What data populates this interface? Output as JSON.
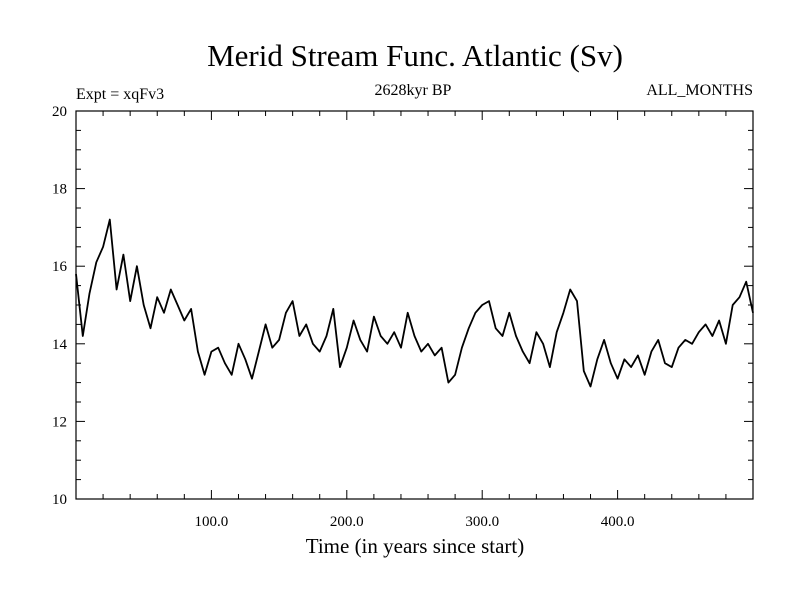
{
  "chart_data": {
    "type": "line",
    "title": "Merid Stream Func. Atlantic (Sv)",
    "subtitle_left": "Expt = xqFv3",
    "subtitle_center": "2628kyr BP",
    "subtitle_right": "ALL_MONTHS",
    "xlabel": "Time (in years since start)",
    "ylabel": "",
    "xlim": [
      0,
      500
    ],
    "ylim": [
      10,
      20
    ],
    "x_ticks": [
      100,
      200,
      300,
      400
    ],
    "x_tick_labels": [
      "100.0",
      "200.0",
      "300.0",
      "400.0"
    ],
    "y_ticks": [
      10,
      12,
      14,
      16,
      18,
      20
    ],
    "y_tick_labels": [
      "10",
      "12",
      "14",
      "16",
      "18",
      "20"
    ],
    "grid": false,
    "series": [
      {
        "name": "Merid Stream Func. Atlantic",
        "color": "#000000",
        "x": [
          0,
          5,
          10,
          15,
          20,
          25,
          30,
          35,
          40,
          45,
          50,
          55,
          60,
          65,
          70,
          75,
          80,
          85,
          90,
          95,
          100,
          105,
          110,
          115,
          120,
          125,
          130,
          135,
          140,
          145,
          150,
          155,
          160,
          165,
          170,
          175,
          180,
          185,
          190,
          195,
          200,
          205,
          210,
          215,
          220,
          225,
          230,
          235,
          240,
          245,
          250,
          255,
          260,
          265,
          270,
          275,
          280,
          285,
          290,
          295,
          300,
          305,
          310,
          315,
          320,
          325,
          330,
          335,
          340,
          345,
          350,
          355,
          360,
          365,
          370,
          375,
          380,
          385,
          390,
          395,
          400,
          405,
          410,
          415,
          420,
          425,
          430,
          435,
          440,
          445,
          450,
          455,
          460,
          465,
          470,
          475,
          480,
          485,
          490,
          495,
          500
        ],
        "values": [
          15.8,
          14.2,
          15.3,
          16.1,
          16.5,
          17.2,
          15.4,
          16.3,
          15.1,
          16.0,
          15.0,
          14.4,
          15.2,
          14.8,
          15.4,
          15.0,
          14.6,
          14.9,
          13.8,
          13.2,
          13.8,
          13.9,
          13.5,
          13.2,
          14.0,
          13.6,
          13.1,
          13.8,
          14.5,
          13.9,
          14.1,
          14.8,
          15.1,
          14.2,
          14.5,
          14.0,
          13.8,
          14.2,
          14.9,
          13.4,
          13.9,
          14.6,
          14.1,
          13.8,
          14.7,
          14.2,
          14.0,
          14.3,
          13.9,
          14.8,
          14.2,
          13.8,
          14.0,
          13.7,
          13.9,
          13.0,
          13.2,
          13.9,
          14.4,
          14.8,
          15.0,
          15.1,
          14.4,
          14.2,
          14.8,
          14.2,
          13.8,
          13.5,
          14.3,
          14.0,
          13.4,
          14.3,
          14.8,
          15.4,
          15.1,
          13.3,
          12.9,
          13.6,
          14.1,
          13.5,
          13.1,
          13.6,
          13.4,
          13.7,
          13.2,
          13.8,
          14.1,
          13.5,
          13.4,
          13.9,
          14.1,
          14.0,
          14.3,
          14.5,
          14.2,
          14.6,
          14.0,
          15.0,
          15.2,
          15.6,
          14.8
        ]
      }
    ]
  }
}
